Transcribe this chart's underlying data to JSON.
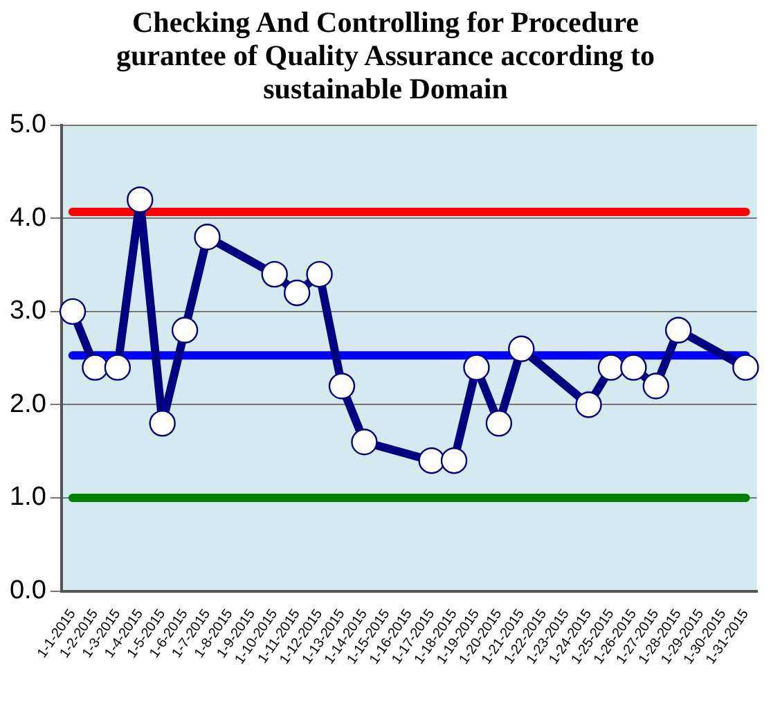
{
  "chart_data": {
    "type": "line",
    "title": "Checking And Controlling for Procedure gurantee of Quality Assurance  according to sustainable Domain",
    "categories": [
      "1-1-2015",
      "1-2-2015",
      "1-3-2015",
      "1-4-2015",
      "1-5-2015",
      "1-6-2015",
      "1-7-2015",
      "1-8-2015",
      "1-9-2015",
      "1-10-2015",
      "1-11-2015",
      "1-12-2015",
      "1-13-2015",
      "1-14-2015",
      "1-15-2015",
      "1-16-2015",
      "1-17-2015",
      "1-18-2015",
      "1-19-2015",
      "1-20-2015",
      "1-21-2015",
      "1-22-2015",
      "1-23-2015",
      "1-24-2015",
      "1-25-2015",
      "1-26-2015",
      "1-27-2015",
      "1-28-2015",
      "1-29-2015",
      "1-30-2015",
      "1-31-2015"
    ],
    "series": [
      {
        "color": "#000080",
        "values": [
          3.0,
          2.4,
          2.4,
          4.2,
          1.8,
          2.8,
          3.8,
          null,
          null,
          3.4,
          3.2,
          3.4,
          2.2,
          1.6,
          null,
          null,
          1.4,
          1.4,
          2.4,
          1.8,
          2.6,
          null,
          null,
          2.0,
          2.4,
          2.4,
          2.2,
          2.8,
          null,
          null,
          2.4
        ]
      }
    ],
    "ylim": [
      0,
      5
    ],
    "yticks": [
      {
        "value": 0,
        "label": "0.0"
      },
      {
        "value": 1,
        "label": "1.0"
      },
      {
        "value": 2,
        "label": "2.0"
      },
      {
        "value": 3,
        "label": "3.0"
      },
      {
        "value": 4,
        "label": "4.0"
      },
      {
        "value": 5,
        "label": "5.0"
      }
    ],
    "grid": "y",
    "legend": false,
    "marker": "circle",
    "line_style": "solid",
    "ref_lines": [
      {
        "axis": "y",
        "value": 4.07,
        "color": "#ff0000"
      },
      {
        "axis": "y",
        "value": 2.53,
        "color": "#0000ff"
      },
      {
        "axis": "y",
        "value": 1.0,
        "color": "#008000"
      }
    ]
  }
}
